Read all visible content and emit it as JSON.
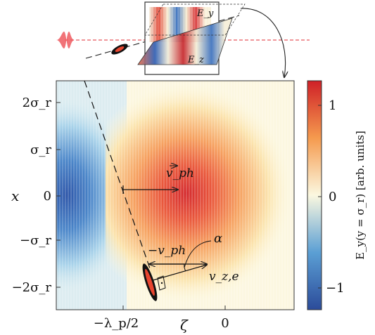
{
  "inset": {
    "field_top_label": "E_y",
    "field_top_sub": "y",
    "field_bottom_label": "E_z",
    "field_bottom_sub": "z"
  },
  "main": {
    "y_axis_title": "x",
    "y_ticks": [
      "2σ_r",
      "σ_r",
      "0",
      "−σ_r",
      "−2σ_r"
    ],
    "x_axis_title": "ζ",
    "x_ticks": [
      "−λ_p/2",
      "0"
    ],
    "vector_ph": "v_ph",
    "vector_minus_ph": "−v_ph",
    "vector_ze": "v_z,e",
    "angle_label": "α"
  },
  "colorbar": {
    "title": "E_y(y = σ_r) [arb. units]",
    "ticks": [
      "1",
      "0",
      "−1"
    ],
    "colormap": [
      "#2b4b9a",
      "#5b9fd4",
      "#fbf8e0",
      "#f59a4e",
      "#cf2027"
    ]
  }
}
